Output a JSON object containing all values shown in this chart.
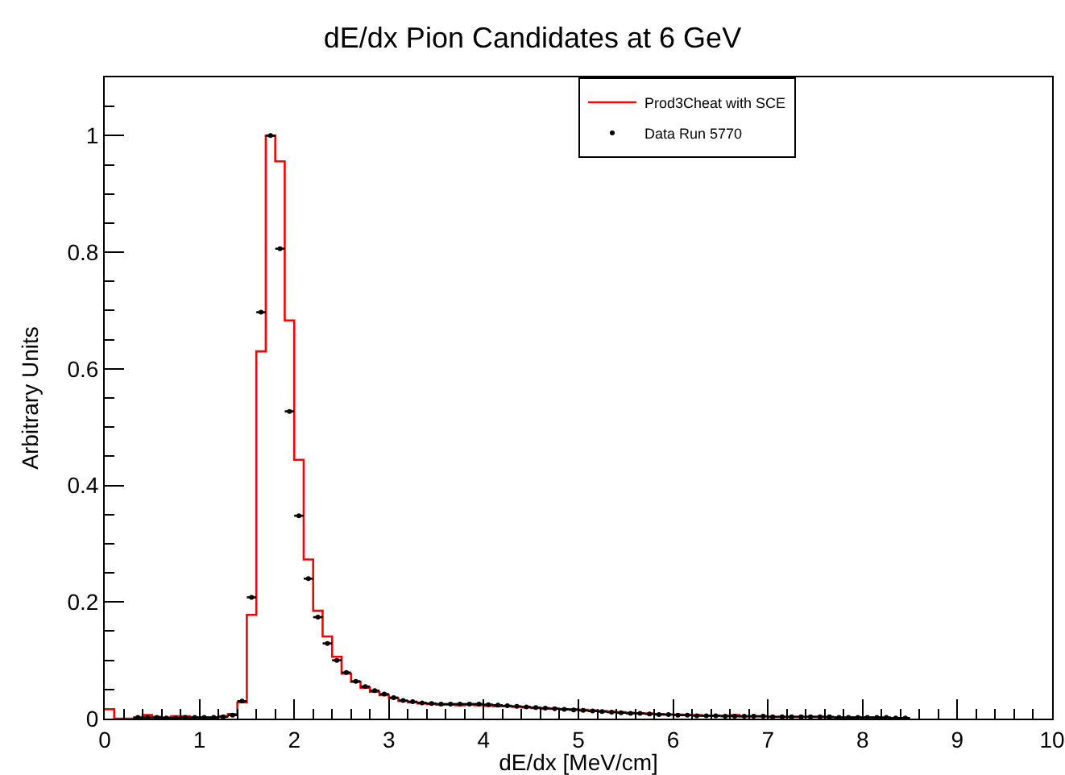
{
  "chart_data": {
    "type": "histogram",
    "title": "dE/dx Pion Candidates at 6 GeV",
    "xlabel": "dE/dx [MeV/cm]",
    "ylabel": "Arbitrary Units",
    "bins": [
      0,
      0.1,
      0.2,
      0.3,
      0.4,
      0.5,
      0.6,
      0.7,
      0.8,
      0.9,
      1,
      1.1,
      1.2,
      1.3,
      1.4,
      1.5,
      1.6,
      1.7,
      1.8,
      1.9,
      2,
      2.1,
      2.2,
      2.3,
      2.4,
      2.5,
      2.6,
      2.7,
      2.8,
      2.9,
      3,
      3.1,
      3.2,
      3.3,
      3.4,
      3.5,
      3.6,
      3.7,
      3.8,
      3.9,
      4,
      4.1,
      4.2,
      4.3,
      4.4,
      4.5,
      4.6,
      4.7,
      4.8,
      4.9,
      5,
      5.1,
      5.2,
      5.3,
      5.4,
      5.5,
      5.6,
      5.7,
      5.8,
      5.9,
      6,
      6.1,
      6.2,
      6.3,
      6.4,
      6.5,
      6.6,
      6.7,
      6.8,
      6.9,
      7,
      7.1,
      7.2,
      7.3,
      7.4,
      7.5,
      7.6,
      7.7,
      7.8,
      7.9,
      8,
      8.1,
      8.2,
      8.3,
      8.4,
      8.5
    ],
    "series": [
      {
        "name": "Prod3Cheat with SCE",
        "color": "#ff0000",
        "values": [
          0.016,
          0,
          0,
          0,
          0.006,
          0.003,
          0.002,
          0.004,
          0.004,
          0.002,
          0.002,
          0.002,
          0.004,
          0.008,
          0.028,
          0.178,
          0.63,
          1.0,
          0.956,
          0.683,
          0.444,
          0.273,
          0.185,
          0.141,
          0.106,
          0.077,
          0.063,
          0.053,
          0.046,
          0.04,
          0.035,
          0.03,
          0.028,
          0.026,
          0.025,
          0.024,
          0.024,
          0.023,
          0.024,
          0.023,
          0.022,
          0.021,
          0.021,
          0.02,
          0.019,
          0.018,
          0.017,
          0.017,
          0.016,
          0.016,
          0.015,
          0.014,
          0.013,
          0.012,
          0.011,
          0.01,
          0.009,
          0.009,
          0.008,
          0.007,
          0.007,
          0.006,
          0.006,
          0.005,
          0.005,
          0.005,
          0.006,
          0.004,
          0.004,
          0.004,
          0.003,
          0.003,
          0.003,
          0.003,
          0.003,
          0.003,
          0.002,
          0.002,
          0.002,
          0.002,
          0.002,
          0.002,
          0.001,
          0.001,
          0.001
        ]
      },
      {
        "name": "Data Run 5770",
        "color": "#000000",
        "type": "scatter",
        "x": [
          0.35,
          0.45,
          0.55,
          0.65,
          0.75,
          0.85,
          0.95,
          1.05,
          1.15,
          1.25,
          1.35,
          1.45,
          1.55,
          1.65,
          1.75,
          1.85,
          1.95,
          2.05,
          2.15,
          2.25,
          2.35,
          2.45,
          2.55,
          2.65,
          2.75,
          2.85,
          2.95,
          3.05,
          3.15,
          3.25,
          3.35,
          3.45,
          3.55,
          3.65,
          3.75,
          3.85,
          3.95,
          4.05,
          4.15,
          4.25,
          4.35,
          4.45,
          4.55,
          4.65,
          4.75,
          4.85,
          4.95,
          5.05,
          5.15,
          5.25,
          5.35,
          5.45,
          5.55,
          5.65,
          5.75,
          5.85,
          5.95,
          6.05,
          6.15,
          6.25,
          6.35,
          6.45,
          6.55,
          6.65,
          6.75,
          6.85,
          6.95,
          7.05,
          7.15,
          7.25,
          7.35,
          7.45,
          7.55,
          7.65,
          7.75,
          7.85,
          7.95,
          8.05,
          8.15,
          8.25,
          8.35,
          8.45
        ],
        "xerrors": [
          0.05,
          0.05,
          0.05,
          0.05,
          0.05,
          0.05,
          0.05,
          0.05,
          0.05,
          0.05,
          0.05,
          0.05,
          0.05,
          0.05,
          0.05,
          0.05,
          0.05,
          0.05,
          0.05,
          0.05,
          0.05,
          0.05,
          0.05,
          0.05,
          0.05,
          0.05,
          0.05,
          0.05,
          0.05,
          0.05,
          0.05,
          0.05,
          0.05,
          0.05,
          0.05,
          0.05,
          0.05,
          0.05,
          0.05,
          0.05,
          0.05,
          0.05,
          0.05,
          0.05,
          0.05,
          0.05,
          0.05,
          0.05,
          0.05,
          0.05,
          0.05,
          0.05,
          0.05,
          0.05,
          0.05,
          0.05,
          0.05,
          0.05,
          0.05,
          0.05,
          0.05,
          0.05,
          0.05,
          0.05,
          0.05,
          0.05,
          0.05,
          0.05,
          0.05,
          0.05,
          0.05,
          0.05,
          0.05,
          0.05,
          0.05,
          0.05,
          0.05,
          0.05,
          0.05,
          0.05,
          0.05,
          0.05
        ],
        "values": [
          0.002,
          0.002,
          0.002,
          0.001,
          0.001,
          0.002,
          0.002,
          0.002,
          0.002,
          0.003,
          0.006,
          0.03,
          0.208,
          0.697,
          1.0,
          0.806,
          0.527,
          0.348,
          0.24,
          0.174,
          0.129,
          0.1,
          0.079,
          0.064,
          0.055,
          0.048,
          0.042,
          0.036,
          0.031,
          0.029,
          0.027,
          0.026,
          0.025,
          0.025,
          0.025,
          0.025,
          0.025,
          0.024,
          0.023,
          0.022,
          0.021,
          0.02,
          0.019,
          0.018,
          0.017,
          0.016,
          0.015,
          0.014,
          0.013,
          0.012,
          0.011,
          0.01,
          0.009,
          0.009,
          0.008,
          0.007,
          0.007,
          0.006,
          0.006,
          0.005,
          0.005,
          0.005,
          0.004,
          0.004,
          0.004,
          0.004,
          0.004,
          0.003,
          0.003,
          0.003,
          0.003,
          0.003,
          0.003,
          0.003,
          0.002,
          0.002,
          0.002,
          0.002,
          0.002,
          0.002,
          0.001,
          0.001
        ]
      }
    ],
    "xlim": [
      0,
      10
    ],
    "xticks": [
      0,
      1,
      2,
      3,
      4,
      5,
      6,
      7,
      8,
      9,
      10
    ],
    "ylim": [
      0,
      1.1
    ],
    "yticks": [
      0,
      0.2,
      0.4,
      0.6,
      0.8,
      1
    ],
    "grid": false,
    "legend": "top right",
    "marker": "circle"
  }
}
